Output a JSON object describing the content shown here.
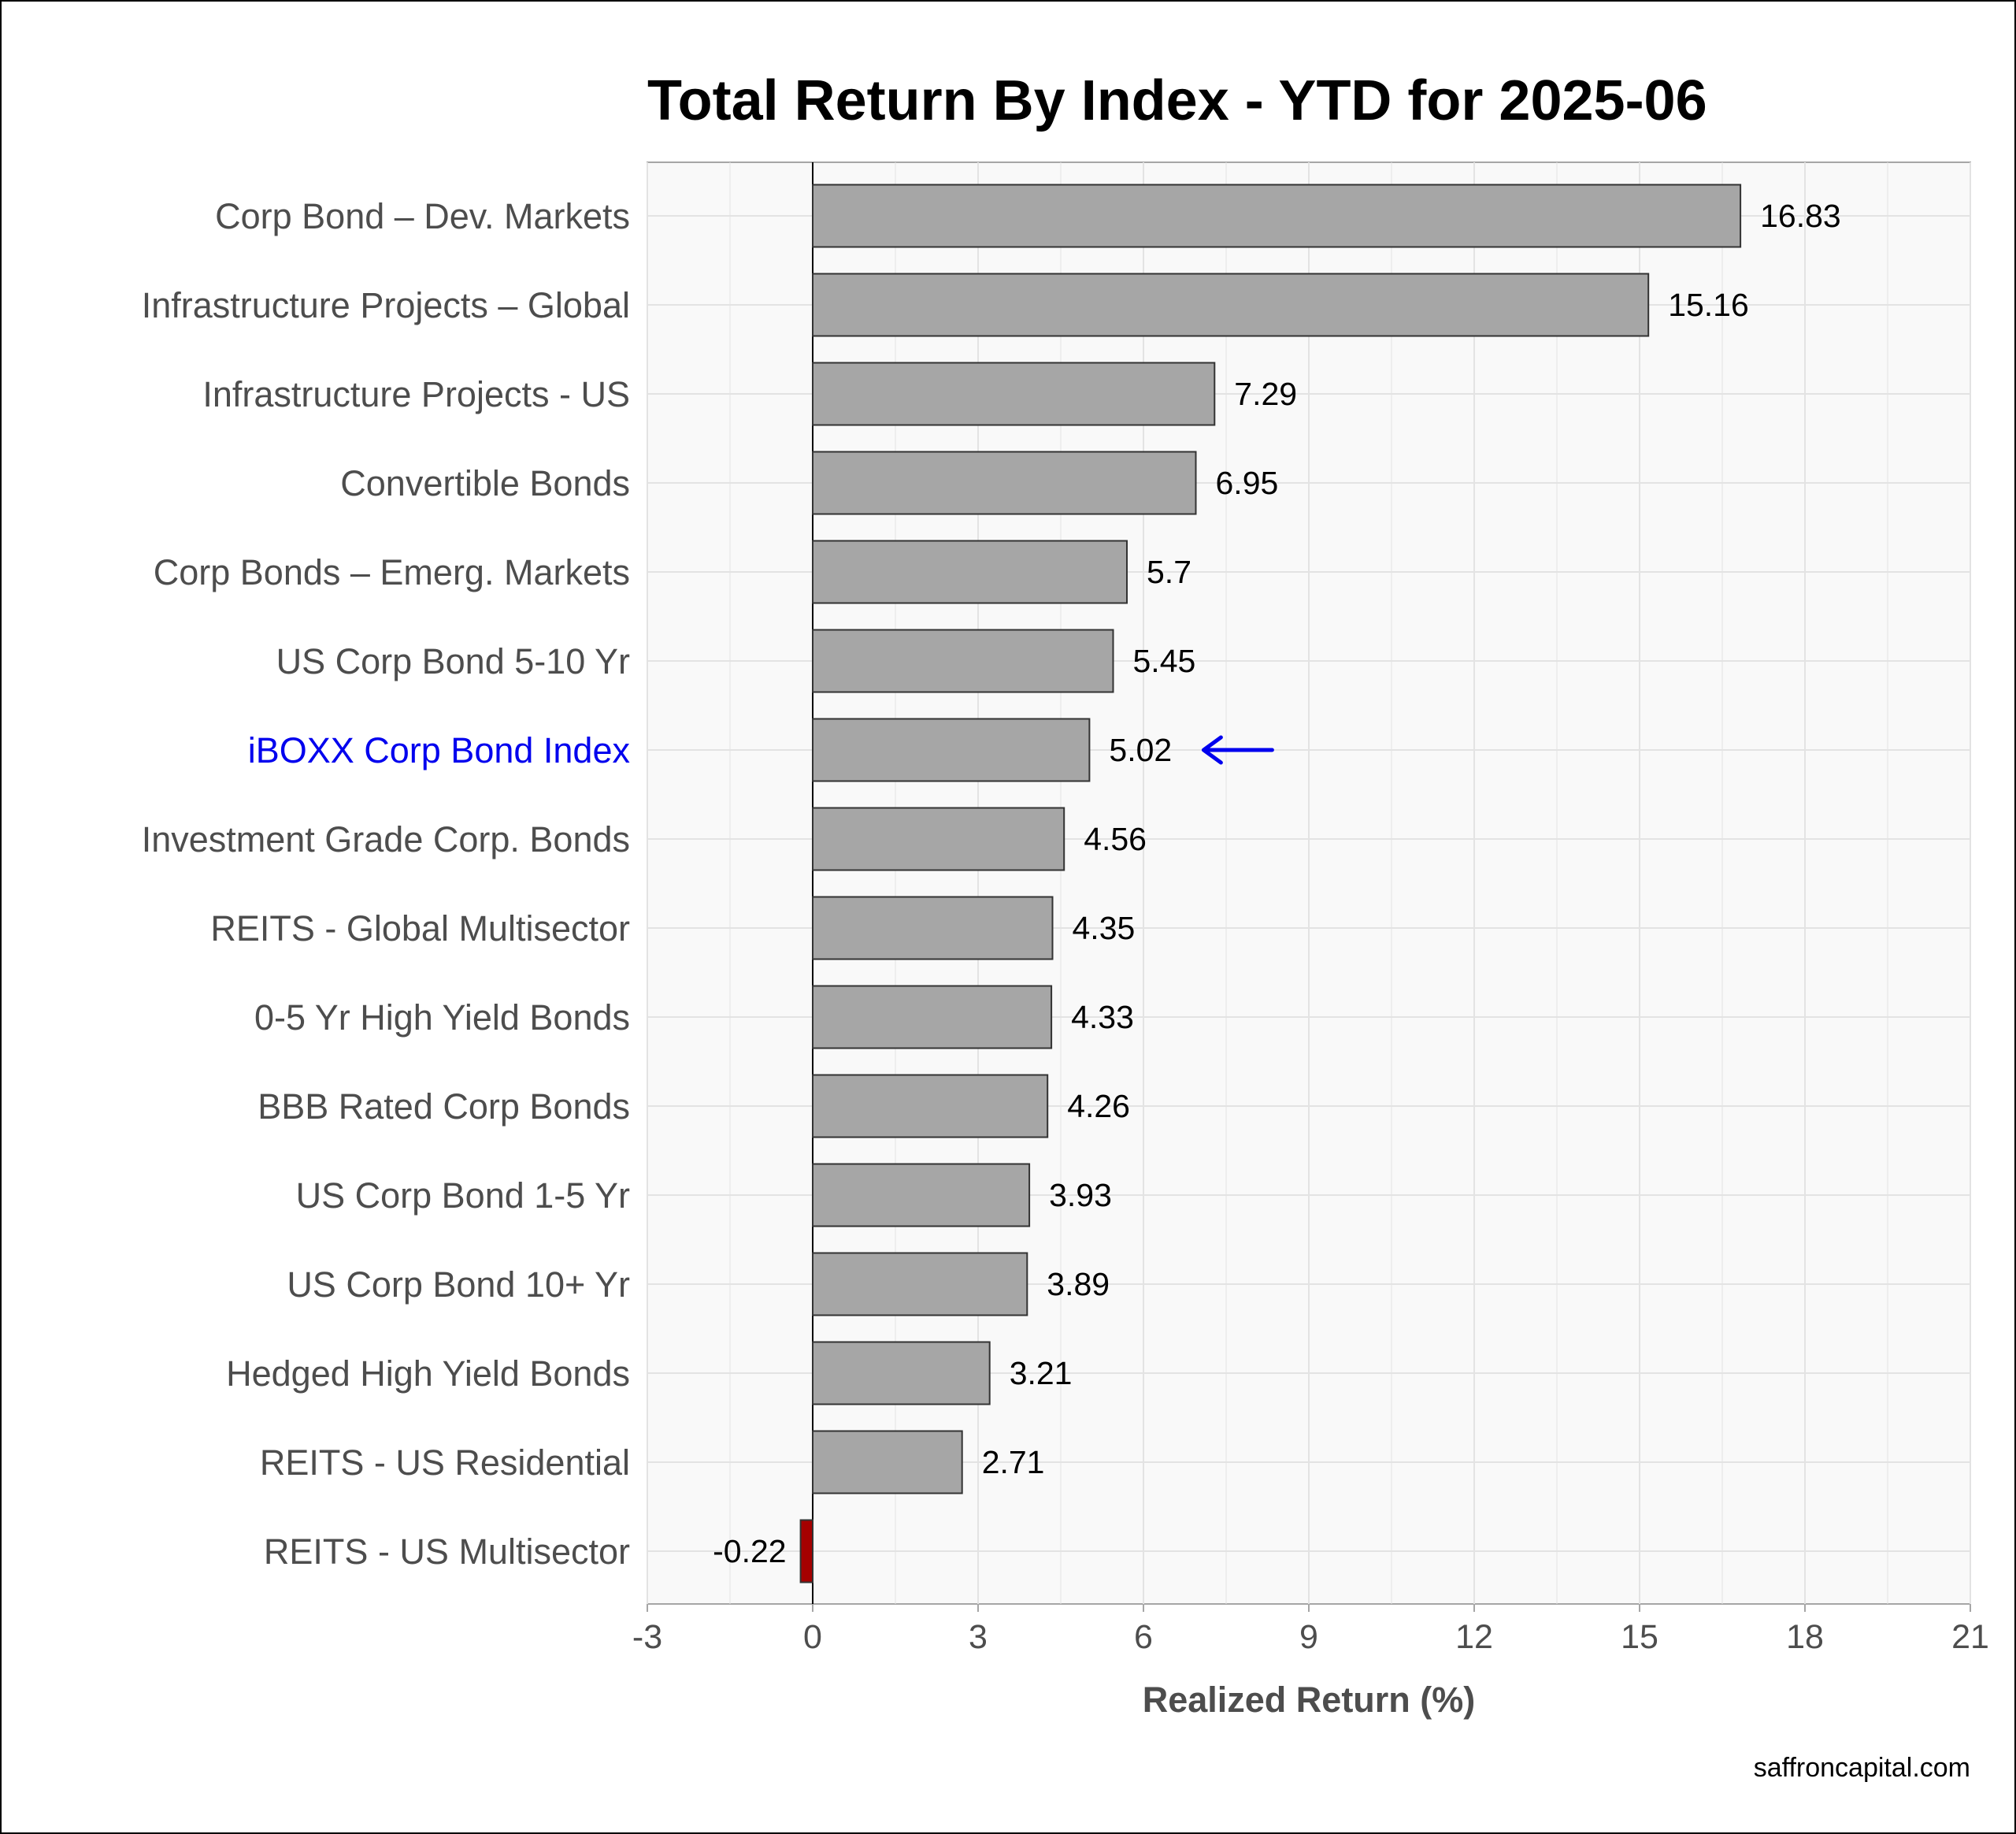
{
  "chart_data": {
    "type": "bar",
    "orientation": "horizontal",
    "title": "Total Return By Index - YTD for 2025-06",
    "xlabel": "Realized Return (%)",
    "ylabel": "",
    "xlim": [
      -3,
      21
    ],
    "xticks": [
      -3,
      0,
      3,
      6,
      9,
      12,
      15,
      18,
      21
    ],
    "grid": true,
    "categories": [
      "Corp Bond – Dev. Markets",
      "Infrastructure Projects – Global",
      "Infrastructure Projects - US",
      "Convertible Bonds",
      "Corp Bonds – Emerg. Markets",
      "US Corp Bond 5-10 Yr",
      "iBOXX Corp Bond Index",
      "Investment Grade Corp. Bonds",
      "REITS - Global Multisector",
      "0-5 Yr High Yield Bonds",
      "BBB Rated Corp Bonds",
      "US Corp Bond 1-5 Yr",
      "US Corp Bond 10+ Yr",
      "Hedged High Yield Bonds",
      "REITS - US Residential",
      "REITS - US Multisector"
    ],
    "values": [
      16.83,
      15.16,
      7.29,
      6.95,
      5.7,
      5.45,
      5.02,
      4.56,
      4.35,
      4.33,
      4.26,
      3.93,
      3.89,
      3.21,
      2.71,
      -0.22
    ],
    "highlight": "iBOXX Corp Bond Index",
    "colors": {
      "positive_bar": "#a6a6a6",
      "negative_bar": "#a50000",
      "highlight_text": "#0000ee",
      "panel_background": "#f9f9f9",
      "grid": "#e3e3e3"
    }
  },
  "footer": {
    "source": "saffroncapital.com"
  }
}
